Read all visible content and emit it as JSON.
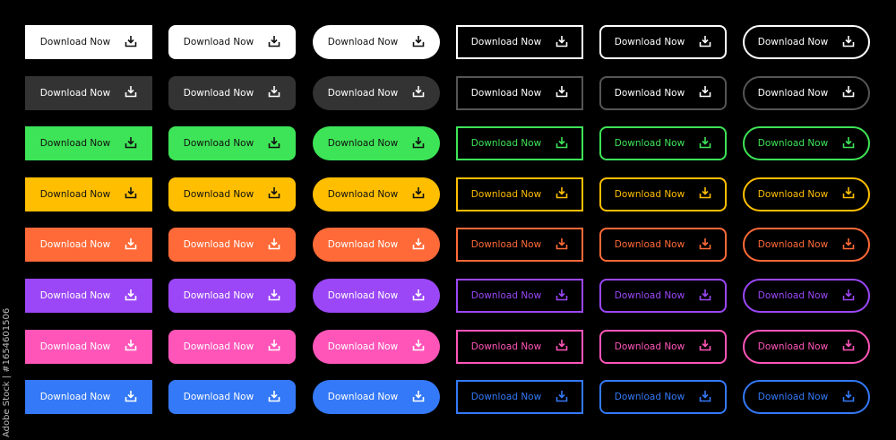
{
  "button_label": "Download Now",
  "icon": "download-tray-icon",
  "credit": "Adobe Stock | #1654601506",
  "styles": [
    "filled-square",
    "filled-rounded",
    "filled-pill",
    "outline-square",
    "outline-rounded",
    "outline-pill"
  ],
  "rows": [
    {
      "name": "white",
      "fill": "#ffffff",
      "fill_text": "#111111",
      "outline": "#ffffff",
      "outline_text": "#ffffff"
    },
    {
      "name": "dark",
      "fill": "#333333",
      "fill_text": "#ffffff",
      "outline": "#555555",
      "outline_text": "#ffffff"
    },
    {
      "name": "green",
      "fill": "#3ee457",
      "fill_text": "#111111",
      "outline": "#3ee457",
      "outline_text": "#3ee457"
    },
    {
      "name": "yellow",
      "fill": "#ffbf00",
      "fill_text": "#111111",
      "outline": "#ffbf00",
      "outline_text": "#ffbf00"
    },
    {
      "name": "orange",
      "fill": "#ff6a38",
      "fill_text": "#ffffff",
      "outline": "#ff6a38",
      "outline_text": "#ff6a38"
    },
    {
      "name": "purple",
      "fill": "#9b47f7",
      "fill_text": "#ffffff",
      "outline": "#9b47f7",
      "outline_text": "#9b47f7"
    },
    {
      "name": "pink",
      "fill": "#ff55b9",
      "fill_text": "#ffffff",
      "outline": "#ff55b9",
      "outline_text": "#ff55b9"
    },
    {
      "name": "blue",
      "fill": "#3479f7",
      "fill_text": "#ffffff",
      "outline": "#3479f7",
      "outline_text": "#3479f7"
    }
  ]
}
